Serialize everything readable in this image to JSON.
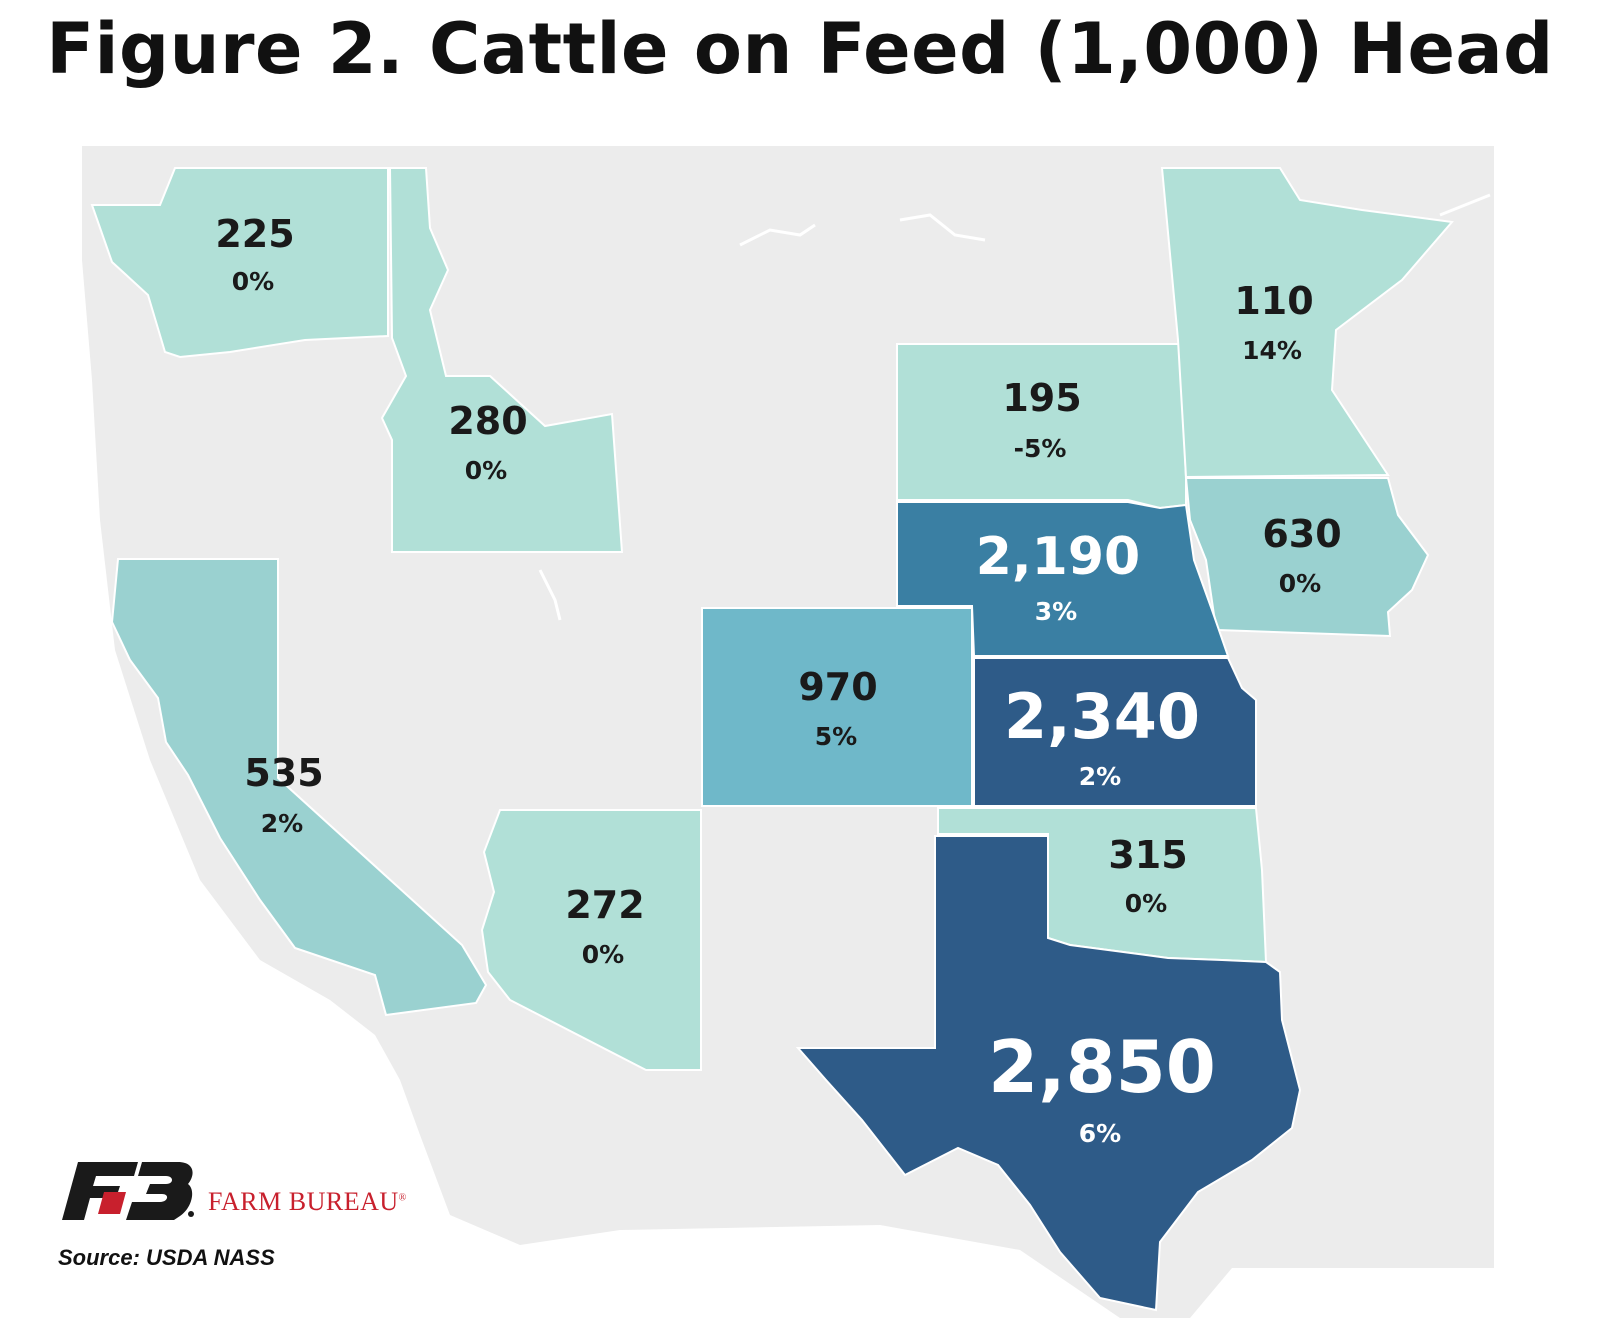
{
  "title": "Figure 2. Cattle on Feed (1,000) Head",
  "colors": {
    "level_1": "#b1e0d7",
    "level_2": "#9ad1d0",
    "level_3": "#6fb8c9",
    "level_4": "#3a7fa3",
    "level_5": "#2e5b88",
    "basemap": "#ececec",
    "logo_red": "#c8202d"
  },
  "states": [
    {
      "id": "wa",
      "name": "Washington",
      "value": "225",
      "change": "0%",
      "level": "level_1"
    },
    {
      "id": "id",
      "name": "Idaho",
      "value": "280",
      "change": "0%",
      "level": "level_1"
    },
    {
      "id": "ca",
      "name": "California",
      "value": "535",
      "change": "2%",
      "level": "level_2"
    },
    {
      "id": "az",
      "name": "Arizona",
      "value": "272",
      "change": "0%",
      "level": "level_1"
    },
    {
      "id": "co",
      "name": "Colorado",
      "value": "970",
      "change": "5%",
      "level": "level_3"
    },
    {
      "id": "sd",
      "name": "South Dakota",
      "value": "195",
      "change": "-5%",
      "level": "level_1"
    },
    {
      "id": "mn",
      "name": "Minnesota",
      "value": "110",
      "change": "14%",
      "level": "level_1"
    },
    {
      "id": "ia",
      "name": "Iowa",
      "value": "630",
      "change": "0%",
      "level": "level_2"
    },
    {
      "id": "ne",
      "name": "Nebraska",
      "value": "2,190",
      "change": "3%",
      "level": "level_4"
    },
    {
      "id": "ks",
      "name": "Kansas",
      "value": "2,340",
      "change": "2%",
      "level": "level_5"
    },
    {
      "id": "ok",
      "name": "Oklahoma",
      "value": "315",
      "change": "0%",
      "level": "level_1"
    },
    {
      "id": "tx",
      "name": "Texas",
      "value": "2,850",
      "change": "6%",
      "level": "level_5"
    }
  ],
  "logo": {
    "icon": "farm-bureau-fb-logo",
    "text": "FARM BUREAU",
    "mark": "®"
  },
  "source": "Source:  USDA NASS"
}
